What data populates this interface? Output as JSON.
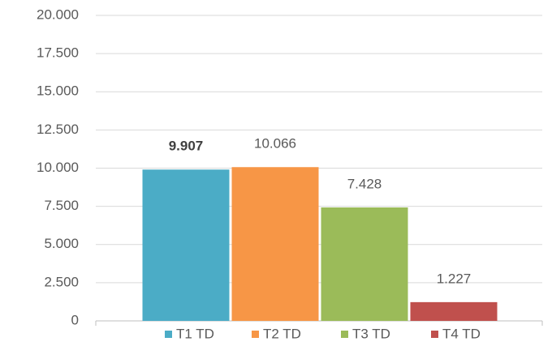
{
  "chart_data": {
    "type": "bar",
    "categories": [
      null
    ],
    "series": [
      {
        "name": "T1 TD",
        "color": "#4bacc6",
        "values": [
          9907
        ],
        "value_labels": [
          "9.907"
        ]
      },
      {
        "name": "T2 TD",
        "color": "#f79646",
        "values": [
          10066
        ],
        "value_labels": [
          "10.066"
        ]
      },
      {
        "name": "T3 TD",
        "color": "#9bbb59",
        "values": [
          7428
        ],
        "value_labels": [
          "7.428"
        ]
      },
      {
        "name": "T4 TD",
        "color": "#c0504d",
        "values": [
          1227
        ],
        "value_labels": [
          "1.227"
        ]
      }
    ],
    "ylim": [
      0,
      20000
    ],
    "yticks": [
      {
        "value": 0,
        "label": "0"
      },
      {
        "value": 2500,
        "label": "2.500"
      },
      {
        "value": 5000,
        "label": "5.000"
      },
      {
        "value": 7500,
        "label": "7.500"
      },
      {
        "value": 10000,
        "label": "10.000"
      },
      {
        "value": 12500,
        "label": "12.500"
      },
      {
        "value": 15000,
        "label": "15.000"
      },
      {
        "value": 17500,
        "label": "17.500"
      },
      {
        "value": 20000,
        "label": "20.000"
      }
    ],
    "grid": true,
    "legend": "bottom"
  }
}
